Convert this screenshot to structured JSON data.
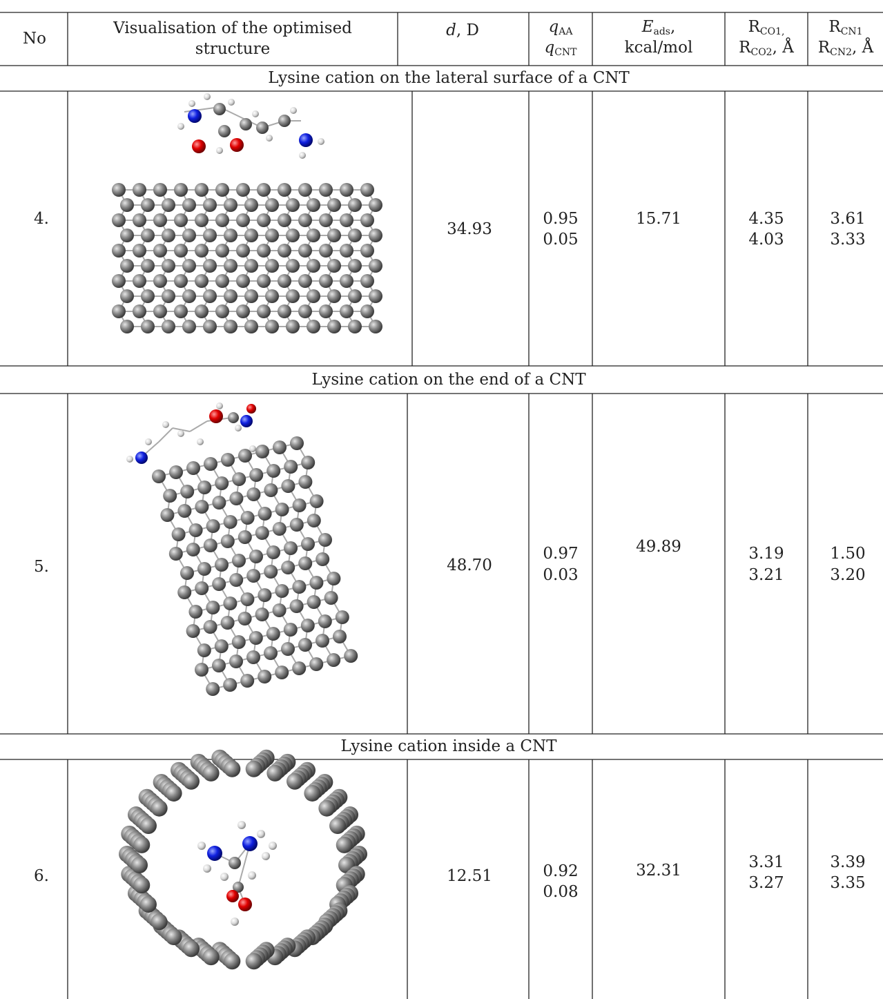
{
  "header": {
    "no": "No",
    "visualisation": [
      "Visualisation of the optimised",
      "structure"
    ],
    "dipole": {
      "symbol": "d",
      "unit": ", D"
    },
    "charge": [
      {
        "symbol": "q",
        "sub": "AA"
      },
      {
        "symbol": "q",
        "sub": "CNT"
      }
    ],
    "energy": {
      "symbol": "E",
      "sub": "ads",
      "tail": ",",
      "unit": "kcal/mol"
    },
    "r_co": [
      {
        "symbol": "R",
        "sub": "CO1,"
      },
      {
        "symbol": "R",
        "sub": "CO2",
        "tail": ", Å"
      }
    ],
    "r_cn": [
      {
        "symbol": "R",
        "sub": "CN1"
      },
      {
        "symbol": "R",
        "sub": "CN2",
        "tail": ", Å"
      }
    ]
  },
  "sections": [
    {
      "title": "Lysine cation on the lateral surface of a CNT",
      "row": {
        "no": "4.",
        "dipole": "34.93",
        "charge": [
          "0.95",
          "0.05"
        ],
        "energy": "15.71",
        "r_co": [
          "4.35",
          "4.03"
        ],
        "r_cn": [
          "3.61",
          "3.33"
        ]
      }
    },
    {
      "title": "Lysine cation on the end of a CNT",
      "row": {
        "no": "5.",
        "dipole": "48.70",
        "charge": [
          "0.97",
          "0.03"
        ],
        "energy": "49.89",
        "r_co": [
          "3.19",
          "3.21"
        ],
        "r_cn": [
          "1.50",
          "3.20"
        ]
      }
    },
    {
      "title": "Lysine cation inside a CNT",
      "row": {
        "no": "6.",
        "dipole": "12.51",
        "charge": [
          "0.92",
          "0.08"
        ],
        "energy": "32.31",
        "r_co": [
          "3.31",
          "3.27"
        ],
        "r_cn": [
          "3.39",
          "3.35"
        ]
      }
    }
  ]
}
